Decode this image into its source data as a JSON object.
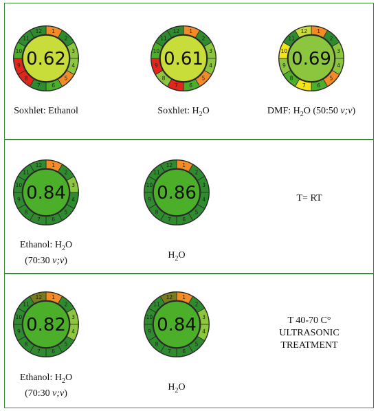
{
  "colors": {
    "dark_green": "#2e8b2e",
    "green": "#4caf2a",
    "light_green": "#8cc63f",
    "yellow_green": "#c8dc3a",
    "yellow": "#f2e61b",
    "orange": "#f28c28",
    "red": "#e3261b",
    "olive": "#7a7a1e",
    "border": "#3a8a3a"
  },
  "panels": [
    {
      "items": [
        {
          "score": "0.62",
          "center": "yellow_green",
          "segments": [
            "orange",
            "dark_green",
            "light_green",
            "light_green",
            "orange",
            "green",
            "dark_green",
            "red",
            "red",
            "green",
            "dark_green",
            "dark_green"
          ],
          "caption_html": "Soxhlet: Ethanol"
        },
        {
          "score": "0.61",
          "center": "yellow_green",
          "segments": [
            "orange",
            "dark_green",
            "light_green",
            "light_green",
            "orange",
            "green",
            "red",
            "light_green",
            "red",
            "green",
            "dark_green",
            "dark_green"
          ],
          "caption_html": "Soxhlet: H<sub>2</sub>O"
        },
        {
          "score": "0.69",
          "center": "light_green",
          "segments": [
            "orange",
            "dark_green",
            "light_green",
            "light_green",
            "orange",
            "green",
            "yellow",
            "green",
            "light_green",
            "yellow",
            "dark_green",
            "yellow_green"
          ],
          "caption_html": "DMF: H<sub>2</sub>O (50:50 <i>v;v</i>)"
        }
      ],
      "note": ""
    },
    {
      "items": [
        {
          "score": "0.84",
          "center": "green",
          "segments": [
            "orange",
            "dark_green",
            "light_green",
            "dark_green",
            "dark_green",
            "dark_green",
            "dark_green",
            "dark_green",
            "dark_green",
            "dark_green",
            "dark_green",
            "dark_green"
          ],
          "caption_html": "Ethanol: H<sub>2</sub>O<br>(70:30 <i>v;v</i>)"
        },
        {
          "score": "0.86",
          "center": "green",
          "segments": [
            "orange",
            "dark_green",
            "dark_green",
            "dark_green",
            "dark_green",
            "dark_green",
            "dark_green",
            "dark_green",
            "dark_green",
            "dark_green",
            "dark_green",
            "dark_green"
          ],
          "caption_html": "H<sub>2</sub>O"
        }
      ],
      "note": "T= RT"
    },
    {
      "items": [
        {
          "score": "0.82",
          "center": "green",
          "segments": [
            "orange",
            "dark_green",
            "light_green",
            "light_green",
            "dark_green",
            "dark_green",
            "dark_green",
            "dark_green",
            "dark_green",
            "dark_green",
            "dark_green",
            "olive"
          ],
          "caption_html": "Ethanol: H<sub>2</sub>O<br>(70:30 <i>v;v</i>)"
        },
        {
          "score": "0.84",
          "center": "green",
          "segments": [
            "orange",
            "dark_green",
            "light_green",
            "light_green",
            "dark_green",
            "dark_green",
            "dark_green",
            "dark_green",
            "dark_green",
            "dark_green",
            "dark_green",
            "olive"
          ],
          "caption_html": "H<sub>2</sub>O"
        }
      ],
      "note": "T 40-70 C°<br>ULTRASONIC<br>TREATMENT"
    }
  ]
}
